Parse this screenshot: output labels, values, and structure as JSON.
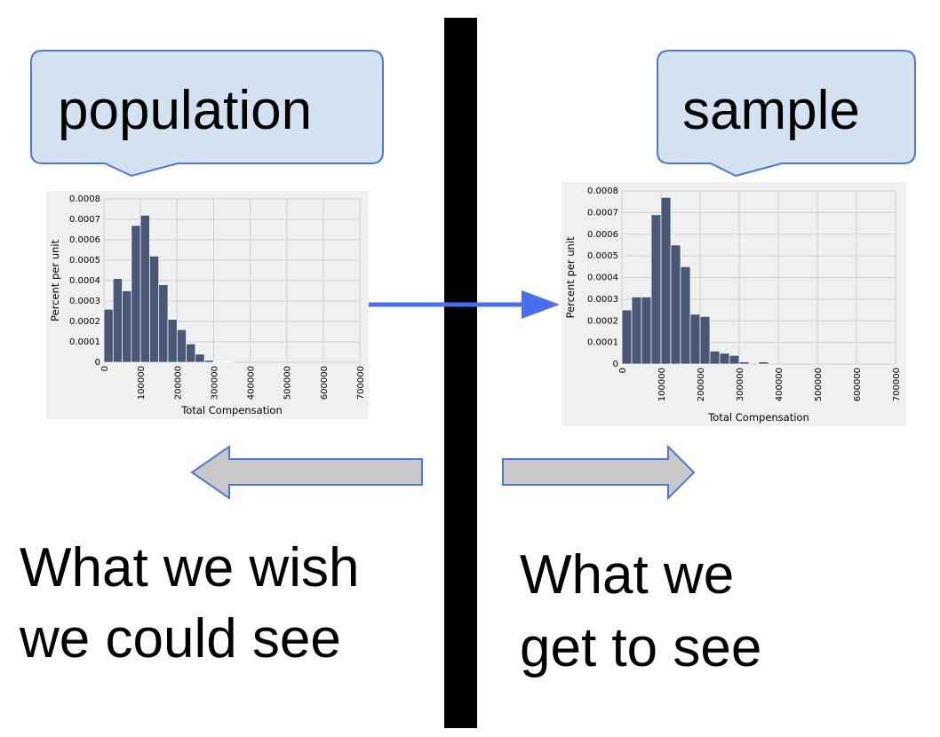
{
  "callouts": [
    "population",
    "sample"
  ],
  "captions": [
    [
      "What we wish",
      "we could see"
    ],
    [
      "What we",
      "get to see"
    ]
  ],
  "chart_data": [
    {
      "type": "histogram",
      "ylabel": "Percent per unit",
      "xlabel": "Total Compensation",
      "bins": [
        0,
        25000,
        50000,
        75000,
        100000,
        125000,
        150000,
        175000,
        200000,
        225000,
        250000,
        275000,
        300000,
        325000,
        350000
      ],
      "counts": [
        0.00026,
        0.00041,
        0.00035,
        0.00067,
        0.00072,
        0.00052,
        0.00038,
        0.00021,
        0.00016,
        9e-05,
        4e-05,
        1e-05,
        3e-06,
        1e-06
      ],
      "color": "#4a5877",
      "xlim": [
        0,
        700000
      ],
      "ylim": [
        0,
        0.0008
      ],
      "xticks": [
        0,
        100000,
        200000,
        300000,
        400000,
        500000,
        600000,
        700000
      ],
      "yticks": [
        0,
        0.0001,
        0.0002,
        0.0003,
        0.0004,
        0.0005,
        0.0006,
        0.0007,
        0.0008
      ],
      "grid": true
    },
    {
      "type": "histogram",
      "ylabel": "Percent per unit",
      "xlabel": "Total Compensation",
      "bins": [
        0,
        25000,
        50000,
        75000,
        100000,
        125000,
        150000,
        175000,
        200000,
        225000,
        250000,
        275000,
        300000,
        325000,
        350000,
        375000
      ],
      "counts": [
        0.00025,
        0.00031,
        0.00031,
        0.00069,
        0.00077,
        0.00055,
        0.00045,
        0.00023,
        0.00022,
        6e-05,
        5e-05,
        4e-05,
        1e-05,
        0,
        1e-05
      ],
      "color": "#4a5877",
      "xlim": [
        0,
        700000
      ],
      "ylim": [
        0,
        0.0008
      ],
      "xticks": [
        0,
        100000,
        200000,
        300000,
        400000,
        500000,
        600000,
        700000
      ],
      "yticks": [
        0,
        0.0001,
        0.0002,
        0.0003,
        0.0004,
        0.0005,
        0.0006,
        0.0007,
        0.0008
      ],
      "grid": true
    }
  ]
}
